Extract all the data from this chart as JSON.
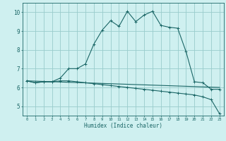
{
  "xlabel": "Humidex (Indice chaleur)",
  "background_color": "#cff0f0",
  "grid_color": "#99cccc",
  "line_color": "#1a6666",
  "xlim": [
    -0.5,
    23.5
  ],
  "ylim": [
    4.5,
    10.5
  ],
  "xticks": [
    0,
    1,
    2,
    3,
    4,
    5,
    6,
    7,
    8,
    9,
    10,
    11,
    12,
    13,
    14,
    15,
    16,
    17,
    18,
    19,
    20,
    21,
    22,
    23
  ],
  "yticks": [
    5,
    6,
    7,
    8,
    9,
    10
  ],
  "curve1_x": [
    0,
    1,
    2,
    3,
    4,
    5,
    6,
    7,
    8,
    9,
    10,
    11,
    12,
    13,
    14,
    15,
    16,
    17,
    18,
    19,
    20,
    21,
    22,
    23
  ],
  "curve1_y": [
    6.35,
    6.25,
    6.3,
    6.3,
    6.5,
    7.0,
    7.0,
    7.25,
    8.3,
    9.05,
    9.55,
    9.25,
    10.05,
    9.5,
    9.85,
    10.05,
    9.3,
    9.2,
    9.15,
    7.9,
    6.3,
    6.25,
    5.9,
    5.9
  ],
  "curve2_x": [
    0,
    1,
    2,
    3,
    4,
    5,
    6,
    7,
    8,
    9,
    10,
    11,
    12,
    13,
    14,
    15,
    16,
    17,
    18,
    19,
    20,
    21,
    22,
    23
  ],
  "curve2_y": [
    6.35,
    6.25,
    6.3,
    6.3,
    6.35,
    6.35,
    6.3,
    6.25,
    6.2,
    6.15,
    6.1,
    6.05,
    6.0,
    5.95,
    5.9,
    5.85,
    5.8,
    5.75,
    5.7,
    5.65,
    5.6,
    5.5,
    5.35,
    4.6
  ],
  "curve3_x": [
    0,
    23
  ],
  "curve3_y": [
    6.35,
    6.0
  ]
}
